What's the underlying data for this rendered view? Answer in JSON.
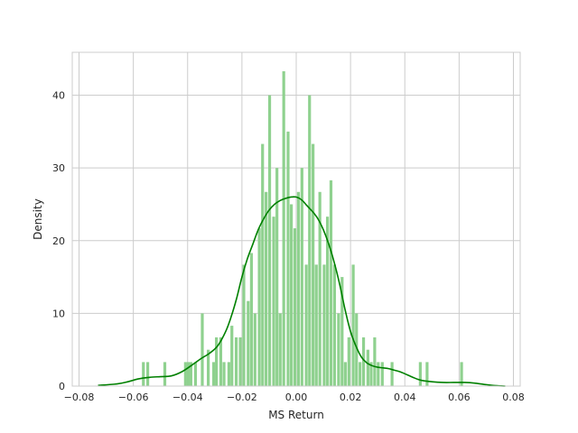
{
  "chart_data": {
    "type": "bar",
    "xlabel": "MS Return",
    "ylabel": "Density",
    "xlim": [
      -0.0825,
      0.0825
    ],
    "ylim": [
      0,
      45.9
    ],
    "xticks": [
      -0.08,
      -0.06,
      -0.04,
      -0.02,
      0.0,
      0.02,
      0.04,
      0.06,
      0.08
    ],
    "xtick_labels": [
      "−0.08",
      "−0.06",
      "−0.04",
      "−0.02",
      "0.00",
      "0.02",
      "0.04",
      "0.06",
      "0.08"
    ],
    "yticks": [
      0,
      10,
      20,
      30,
      40
    ],
    "ytick_labels": [
      "0",
      "10",
      "20",
      "30",
      "40"
    ],
    "grid": true,
    "bar_color": "#8fd18f",
    "line_color": "#008000",
    "histogram": {
      "x": [
        -0.0562,
        -0.0546,
        -0.0483,
        -0.0407,
        -0.0397,
        -0.0387,
        -0.037,
        -0.0345,
        -0.0323,
        -0.0303,
        -0.0293,
        -0.0277,
        -0.0265,
        -0.0247,
        -0.0236,
        -0.022,
        -0.0205,
        -0.0192,
        -0.0176,
        -0.0164,
        -0.0151,
        -0.0135,
        -0.0123,
        -0.011,
        -0.0097,
        -0.0082,
        -0.007,
        -0.0058,
        -0.0045,
        -0.0029,
        -0.0017,
        -0.0004,
        0.0009,
        0.0022,
        0.0038,
        0.005,
        0.0063,
        0.0075,
        0.0088,
        0.0104,
        0.0116,
        0.0129,
        0.0142,
        0.0157,
        0.017,
        0.0182,
        0.0195,
        0.0211,
        0.0223,
        0.0236,
        0.0249,
        0.0265,
        0.0277,
        0.029,
        0.0303,
        0.0318,
        0.0354,
        0.0458,
        0.0483,
        0.061
      ],
      "y": [
        3.3,
        3.3,
        3.3,
        3.3,
        3.3,
        3.3,
        3.3,
        10.0,
        5.0,
        3.3,
        6.7,
        6.7,
        3.3,
        3.3,
        8.3,
        6.7,
        6.7,
        16.7,
        11.7,
        18.3,
        10.0,
        21.7,
        33.3,
        26.7,
        40.0,
        23.3,
        30.0,
        10.0,
        43.3,
        35.0,
        25.0,
        21.7,
        26.7,
        30.0,
        16.7,
        40.0,
        33.3,
        16.7,
        26.7,
        16.7,
        23.3,
        28.3,
        16.7,
        10.0,
        15.0,
        3.3,
        6.7,
        16.7,
        10.0,
        3.3,
        6.7,
        5.0,
        3.3,
        6.7,
        3.3,
        3.3,
        3.3,
        3.3,
        3.3,
        3.3
      ],
      "bin_width": 0.00126
    },
    "kde": {
      "x": [
        -0.073,
        -0.066,
        -0.062,
        -0.058,
        -0.054,
        -0.05,
        -0.046,
        -0.042,
        -0.038,
        -0.035,
        -0.032,
        -0.029,
        -0.026,
        -0.024,
        -0.022,
        -0.02,
        -0.018,
        -0.016,
        -0.014,
        -0.012,
        -0.01,
        -0.008,
        -0.006,
        -0.004,
        -0.002,
        0.0,
        0.002,
        0.004,
        0.006,
        0.008,
        0.01,
        0.012,
        0.014,
        0.016,
        0.018,
        0.02,
        0.022,
        0.024,
        0.026,
        0.028,
        0.03,
        0.032,
        0.034,
        0.036,
        0.038,
        0.04,
        0.043,
        0.046,
        0.05,
        0.054,
        0.058,
        0.062,
        0.066,
        0.07,
        0.074,
        0.077
      ],
      "y": [
        0.1,
        0.3,
        0.6,
        1.0,
        1.2,
        1.3,
        1.4,
        2.0,
        3.0,
        3.8,
        4.5,
        5.5,
        7.5,
        9.5,
        12.0,
        15.0,
        17.5,
        19.5,
        21.5,
        23.0,
        24.2,
        25.0,
        25.5,
        25.8,
        26.0,
        26.0,
        25.6,
        24.8,
        24.0,
        23.0,
        21.5,
        19.5,
        17.0,
        14.0,
        10.5,
        7.5,
        5.5,
        4.0,
        3.2,
        2.8,
        2.6,
        2.5,
        2.4,
        2.2,
        2.0,
        1.7,
        1.2,
        0.8,
        0.6,
        0.5,
        0.5,
        0.5,
        0.4,
        0.2,
        0.05,
        0.0
      ]
    }
  }
}
